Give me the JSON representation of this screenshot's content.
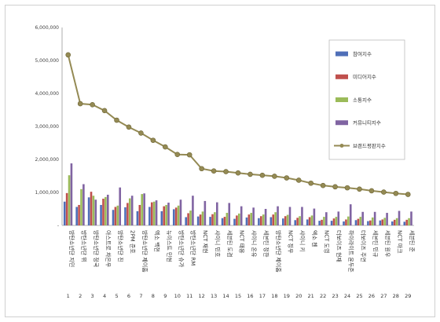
{
  "chart_data": {
    "type": "bar",
    "ylim": [
      0,
      6000000
    ],
    "yticks": [
      "-",
      "1,000,000",
      "2,000,000",
      "3,000,000",
      "4,000,000",
      "5,000,000",
      "6,000,000"
    ],
    "index_labels": [
      "1",
      "2",
      "3",
      "4",
      "5",
      "6",
      "7",
      "8",
      "9",
      "10",
      "11",
      "12",
      "13",
      "14",
      "15",
      "16",
      "17",
      "18",
      "19",
      "20",
      "21",
      "22",
      "23",
      "24",
      "25",
      "26",
      "27",
      "28",
      "29"
    ],
    "categories": [
      "방탄소년단 지민",
      "방탄소년단 뷔",
      "방탄소년단 정국",
      "아스트로 차은우",
      "방탄소년단 진",
      "2PM 준호",
      "방탄소년단 제이홉",
      "엑소 백현",
      "뉴이스트 민현",
      "방탄소년단 슈가",
      "방탄소년단 RM",
      "NCT 재현",
      "샤이니 민호",
      "세븐틴 도겸",
      "NCT 태용",
      "샤이니 온유",
      "세븐틴 정한",
      "방탄소년단 제이홉",
      "NCT 정우",
      "샤이니 키",
      "엑소 첸",
      "NCT 도영",
      "더보이즈 현재",
      "하이라이트 윤두준",
      "더보이즈 주연",
      "세븐틴 민규",
      "세븐틴 원우",
      "NCT 마크",
      "세븐틴 준"
    ],
    "series": [
      {
        "name": "참여지수",
        "color": "#4f6fb8",
        "values": [
          720000,
          560000,
          850000,
          620000,
          470000,
          550000,
          430000,
          560000,
          430000,
          490000,
          250000,
          270000,
          260000,
          220000,
          200000,
          240000,
          220000,
          250000,
          210000,
          160000,
          180000,
          140000,
          140000,
          120000,
          160000,
          130000,
          150000,
          120000,
          110000
        ]
      },
      {
        "name": "미디어지수",
        "color": "#c0504d",
        "values": [
          980000,
          620000,
          1020000,
          810000,
          560000,
          680000,
          620000,
          700000,
          580000,
          540000,
          370000,
          330000,
          340000,
          260000,
          300000,
          330000,
          280000,
          330000,
          280000,
          230000,
          250000,
          170000,
          210000,
          180000,
          200000,
          150000,
          180000,
          170000,
          170000
        ]
      },
      {
        "name": "소통지수",
        "color": "#9bbb59",
        "values": [
          1520000,
          1100000,
          900000,
          860000,
          600000,
          820000,
          950000,
          720000,
          620000,
          600000,
          450000,
          420000,
          400000,
          380000,
          360000,
          380000,
          330000,
          400000,
          320000,
          280000,
          300000,
          260000,
          260000,
          270000,
          260000,
          240000,
          230000,
          220000,
          220000
        ]
      },
      {
        "name": "커뮤니티지수",
        "color": "#8064a2",
        "values": [
          1880000,
          1250000,
          780000,
          930000,
          1150000,
          900000,
          970000,
          760000,
          690000,
          780000,
          900000,
          740000,
          700000,
          680000,
          580000,
          540000,
          500000,
          580000,
          560000,
          560000,
          510000,
          400000,
          420000,
          640000,
          410000,
          410000,
          380000,
          440000,
          420000
        ]
      },
      {
        "name": "브랜드평판지수",
        "color": "#948a54",
        "line": true,
        "values": [
          5170000,
          3690000,
          3660000,
          3480000,
          3190000,
          2980000,
          2800000,
          2580000,
          2380000,
          2150000,
          2140000,
          1720000,
          1650000,
          1630000,
          1590000,
          1550000,
          1520000,
          1490000,
          1440000,
          1370000,
          1280000,
          1210000,
          1170000,
          1140000,
          1100000,
          1050000,
          1010000,
          970000,
          940000
        ]
      }
    ]
  }
}
